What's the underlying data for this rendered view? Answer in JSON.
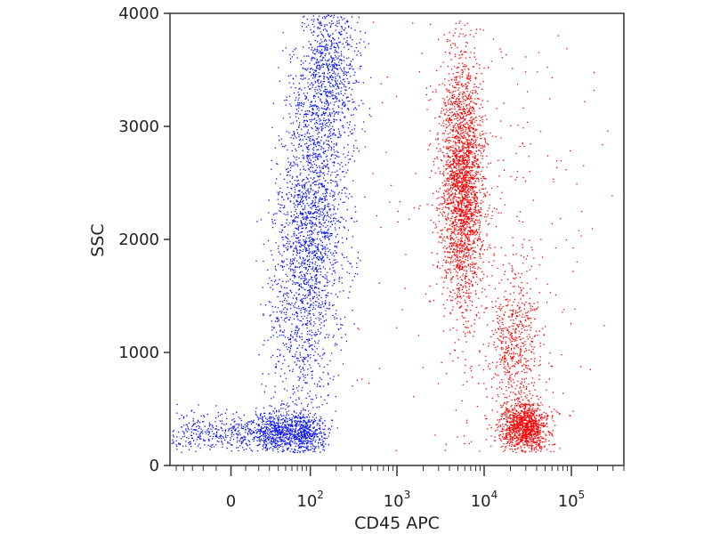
{
  "chart_data": {
    "type": "scatter",
    "title": "",
    "xlabel": "CD45 APC",
    "ylabel": "SSC",
    "x_scale": "biexponential (linear near 0, log above ~10^2)",
    "x_ticks": [
      {
        "value": 0,
        "label": "0",
        "exp": ""
      },
      {
        "value": 100,
        "label": "10",
        "exp": "2"
      },
      {
        "value": 1000,
        "label": "10",
        "exp": "3"
      },
      {
        "value": 10000,
        "label": "10",
        "exp": "4"
      },
      {
        "value": 100000,
        "label": "10",
        "exp": "5"
      }
    ],
    "y_ticks": [
      0,
      1000,
      2000,
      3000,
      4000
    ],
    "ylim": [
      0,
      4000
    ],
    "grid": false,
    "legend": "none",
    "series": [
      {
        "color": "#0a14ff",
        "clusters": [
          {
            "x_center": 40,
            "y_center": 300,
            "x_spread_decades": 0.25,
            "y_spread": 90,
            "weight": 0.3
          },
          {
            "x_center": 100,
            "y_center": 2100,
            "x_spread_decades": 0.22,
            "y_spread": 850,
            "weight": 0.55
          },
          {
            "x_center": 160,
            "y_center": 3500,
            "x_spread_decades": 0.18,
            "y_spread": 350,
            "weight": 0.15
          }
        ]
      },
      {
        "color": "#ff0000",
        "clusters": [
          {
            "x_center": 5500,
            "y_center": 2500,
            "x_spread_decades": 0.12,
            "y_spread": 550,
            "weight": 0.55
          },
          {
            "x_center": 28000,
            "y_center": 350,
            "x_spread_decades": 0.14,
            "y_spread": 110,
            "weight": 0.25
          },
          {
            "x_center": 22000,
            "y_center": 1100,
            "x_spread_decades": 0.15,
            "y_spread": 300,
            "weight": 0.12
          },
          {
            "x_center": 12000,
            "y_center": 2200,
            "x_spread_decades": 0.6,
            "y_spread": 1100,
            "weight": 0.08
          }
        ]
      }
    ]
  }
}
